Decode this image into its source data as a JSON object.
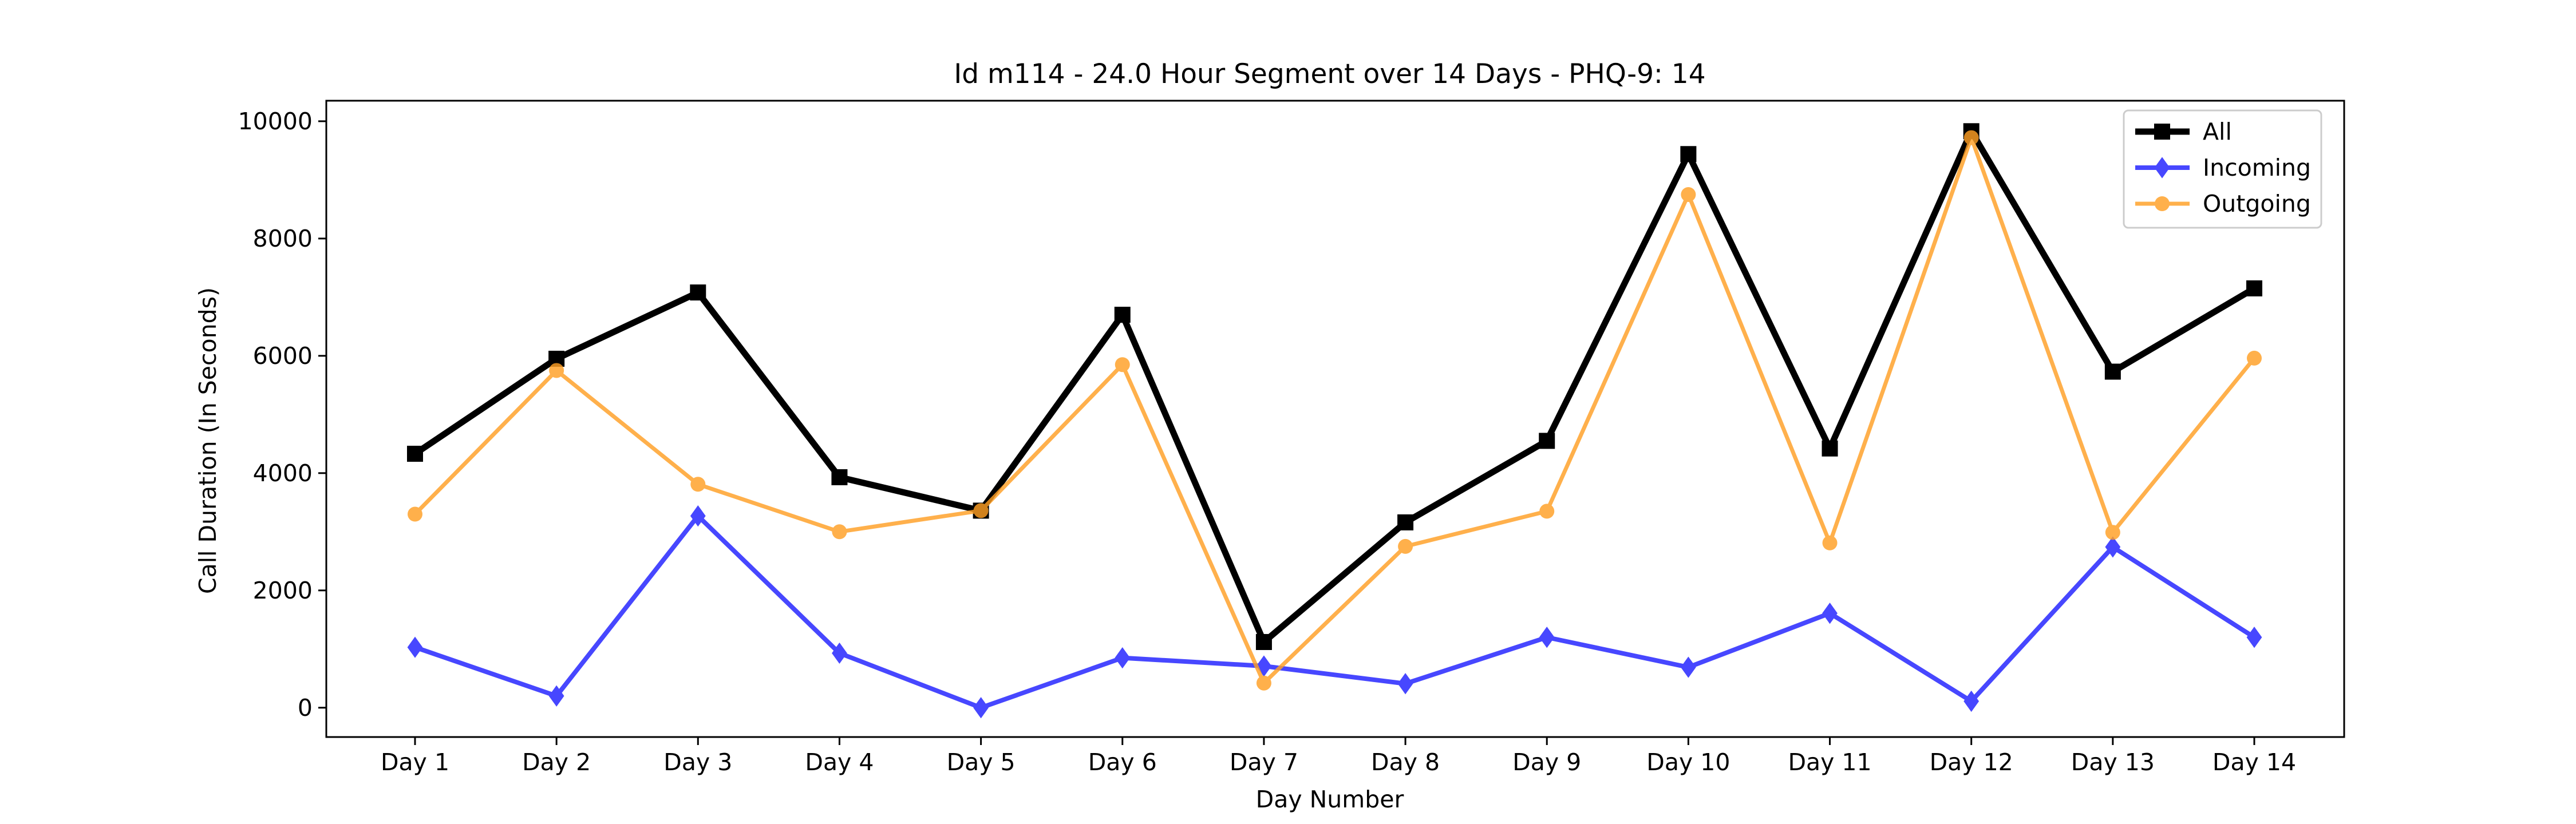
{
  "chart_data": {
    "type": "line",
    "title": "Id m114 - 24.0 Hour Segment over 14 Days - PHQ-9: 14",
    "xlabel": "Day Number",
    "ylabel": "Call Duration (In Seconds)",
    "categories": [
      "Day 1",
      "Day 2",
      "Day 3",
      "Day 4",
      "Day 5",
      "Day 6",
      "Day 7",
      "Day 8",
      "Day 9",
      "Day 10",
      "Day 11",
      "Day 12",
      "Day 13",
      "Day 14"
    ],
    "ylim": [
      -500,
      10350
    ],
    "yticks": [
      0,
      2000,
      4000,
      6000,
      8000,
      10000
    ],
    "grid": false,
    "legend_position": "top-right",
    "series": [
      {
        "name": "All",
        "color": "#000000",
        "marker": "square",
        "values": [
          4330,
          5950,
          7080,
          3930,
          3360,
          6700,
          1120,
          3160,
          4550,
          9440,
          4420,
          9830,
          5730,
          7150
        ]
      },
      {
        "name": "Incoming",
        "color": "#1f1fff",
        "marker": "diamond",
        "values": [
          1030,
          200,
          3270,
          930,
          0,
          850,
          710,
          410,
          1200,
          690,
          1610,
          110,
          2740,
          1200
        ]
      },
      {
        "name": "Outgoing",
        "color": "#ff9f24",
        "marker": "circle",
        "values": [
          3300,
          5750,
          3810,
          3000,
          3360,
          5850,
          420,
          2750,
          3350,
          8750,
          2810,
          9720,
          2990,
          5960
        ]
      }
    ]
  }
}
